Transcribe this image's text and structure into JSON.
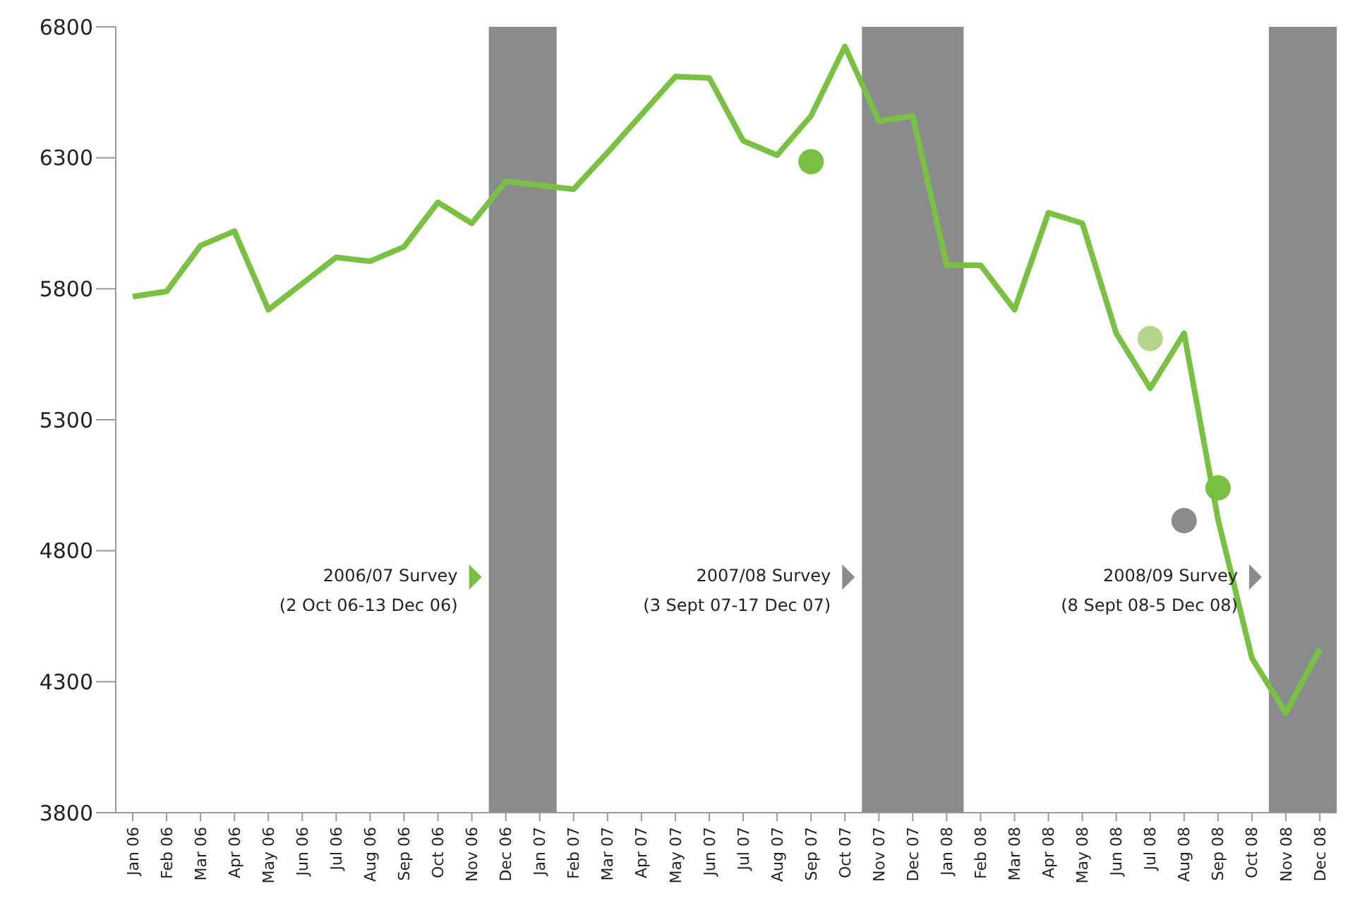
{
  "chart_data": {
    "type": "line",
    "categories": [
      "Jan 06",
      "Feb 06",
      "Mar 06",
      "Apr 06",
      "May 06",
      "Jun 06",
      "Jul 06",
      "Aug 06",
      "Sep 06",
      "Oct 06",
      "Nov 06",
      "Dec 06",
      "Jan 07",
      "Feb 07",
      "Mar 07",
      "Apr 07",
      "May 07",
      "Jun 07",
      "Jul 07",
      "Aug 07",
      "Sep 07",
      "Oct 07",
      "Nov 07",
      "Dec 07",
      "Jan 08",
      "Feb 08",
      "Mar 08",
      "Apr 08",
      "May 08",
      "Jun 08",
      "Jul 08",
      "Aug 08",
      "Sep 08",
      "Oct 08",
      "Nov 08",
      "Dec 08"
    ],
    "series": [
      {
        "color": "#7ac143",
        "marker": "none",
        "values": [
          5770,
          5790,
          5965,
          6020,
          5720,
          5820,
          5920,
          5905,
          5960,
          6130,
          6050,
          6210,
          6195,
          6180,
          6320,
          6465,
          6610,
          6605,
          6365,
          6310,
          6460,
          6725,
          6440,
          6460,
          5890,
          5890,
          5720,
          6090,
          6050,
          5630,
          5420,
          5630,
          4920,
          4390,
          4180,
          4425
        ]
      },
      {
        "type": "scatter",
        "marker": "circle",
        "color": "#7ac143",
        "x": [
          "Sep 07"
        ],
        "values": [
          6285
        ]
      },
      {
        "type": "scatter",
        "marker": "circle",
        "color": "#b5d68a",
        "x": [
          "Jul 08"
        ],
        "values": [
          5610
        ]
      },
      {
        "type": "scatter",
        "marker": "circle",
        "color": "#8a8b8d",
        "x": [
          "Aug 08"
        ],
        "values": [
          4915
        ]
      },
      {
        "type": "scatter",
        "marker": "circle",
        "color": "#7ac143",
        "x": [
          "Sep 08"
        ],
        "values": [
          5040
        ]
      }
    ],
    "ylim": [
      3800,
      6800
    ],
    "yticks": [
      3800,
      4300,
      4800,
      5300,
      5800,
      6300,
      6800
    ],
    "grid": false,
    "bands": [
      {
        "axis": "x",
        "from": "Dec 06",
        "to": "Jan 07",
        "color": "#8a8b8d",
        "label": "2006/07 Survey\n(2 Oct 06-13 Dec 06)"
      },
      {
        "axis": "x",
        "from": "Nov 07",
        "to": "Jan 08",
        "color": "#8a8b8d",
        "label": "2007/08 Survey\n(3 Sept 07-17 Dec 07)"
      },
      {
        "axis": "x",
        "from": "Nov 08",
        "to": "Dec 08",
        "color": "#8a8b8d",
        "label": "2008/09 Survey\n(8 Sept 08-5 Dec 08)"
      }
    ]
  }
}
